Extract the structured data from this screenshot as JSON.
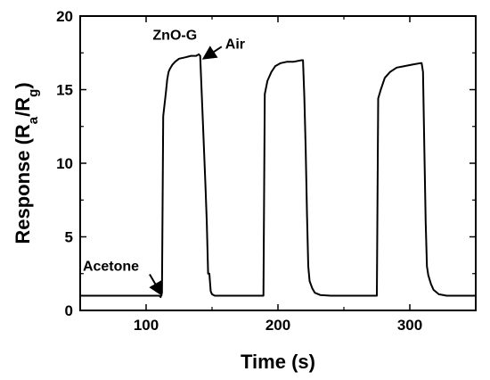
{
  "chart_data": {
    "type": "line",
    "xlabel": "Time (s)",
    "ylabel": {
      "prefix": "Response (R",
      "sub1": "a",
      "mid": "/R",
      "sub2": "g",
      "suffix": ")"
    },
    "xlim": [
      50,
      350
    ],
    "ylim": [
      0,
      20
    ],
    "xticks": [
      100,
      200,
      300
    ],
    "yticks": [
      0,
      5,
      10,
      15,
      20
    ],
    "grid": false,
    "series": [
      {
        "color": "#000000",
        "points": [
          [
            50,
            1.0
          ],
          [
            110,
            1.0
          ],
          [
            111,
            0.9
          ],
          [
            112,
            1.2
          ],
          [
            113,
            13.2
          ],
          [
            114,
            14.0
          ],
          [
            115,
            14.8
          ],
          [
            116,
            15.7
          ],
          [
            117,
            16.2
          ],
          [
            118,
            16.4
          ],
          [
            120,
            16.7
          ],
          [
            122,
            16.9
          ],
          [
            125,
            17.1
          ],
          [
            130,
            17.2
          ],
          [
            134,
            17.3
          ],
          [
            138,
            17.3
          ],
          [
            140,
            17.4
          ],
          [
            141,
            17.3
          ],
          [
            143,
            13.0
          ],
          [
            145,
            8.5
          ],
          [
            146,
            6.0
          ],
          [
            147,
            2.5
          ],
          [
            148,
            2.5
          ],
          [
            149,
            1.3
          ],
          [
            150,
            1.1
          ],
          [
            152,
            1.0
          ],
          [
            160,
            1.0
          ],
          [
            175,
            1.0
          ],
          [
            189,
            1.0
          ],
          [
            190,
            14.7
          ],
          [
            192,
            15.6
          ],
          [
            195,
            16.2
          ],
          [
            198,
            16.6
          ],
          [
            202,
            16.8
          ],
          [
            207,
            16.9
          ],
          [
            212,
            16.9
          ],
          [
            218,
            17.0
          ],
          [
            219,
            17.0
          ],
          [
            220,
            14.5
          ],
          [
            221,
            11.0
          ],
          [
            222,
            6.5
          ],
          [
            223,
            3.0
          ],
          [
            224,
            2.0
          ],
          [
            226,
            1.5
          ],
          [
            228,
            1.2
          ],
          [
            232,
            1.05
          ],
          [
            240,
            1.0
          ],
          [
            260,
            1.0
          ],
          [
            275,
            1.0
          ],
          [
            276,
            14.4
          ],
          [
            278,
            15.0
          ],
          [
            281,
            15.8
          ],
          [
            285,
            16.2
          ],
          [
            290,
            16.5
          ],
          [
            296,
            16.6
          ],
          [
            302,
            16.7
          ],
          [
            308,
            16.8
          ],
          [
            309,
            16.8
          ],
          [
            310,
            16.2
          ],
          [
            311,
            11.0
          ],
          [
            312,
            6.0
          ],
          [
            313,
            3.0
          ],
          [
            314,
            2.4
          ],
          [
            316,
            1.8
          ],
          [
            318,
            1.4
          ],
          [
            322,
            1.1
          ],
          [
            328,
            1.0
          ],
          [
            350,
            1.0
          ]
        ]
      }
    ],
    "annotations": [
      {
        "text": "ZnO-G",
        "x": 105,
        "y": 18.4
      },
      {
        "text": "Air",
        "x": 160,
        "y": 17.8,
        "arrow_to": [
          142,
          17.3
        ]
      },
      {
        "text": "Acetone",
        "x": 52,
        "y": 2.7,
        "arrow_to": [
          113,
          1.0
        ]
      }
    ]
  }
}
